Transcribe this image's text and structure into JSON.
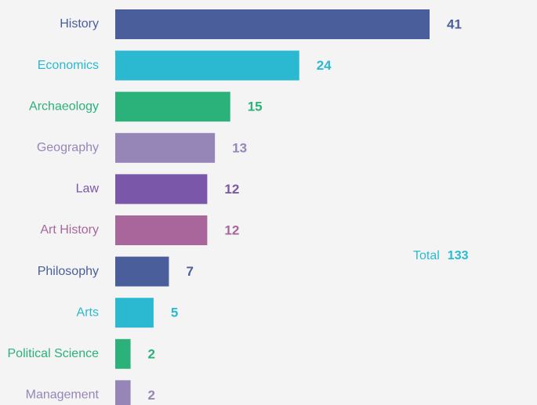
{
  "chart_data": {
    "type": "bar",
    "orientation": "horizontal",
    "categories": [
      "History",
      "Economics",
      "Archaeology",
      "Geography",
      "Law",
      "Art History",
      "Philosophy",
      "Arts",
      "Political Science",
      "Management"
    ],
    "values": [
      41,
      24,
      15,
      13,
      12,
      12,
      7,
      5,
      2,
      2
    ],
    "colors": [
      "#4a5e9b",
      "#2bb9d1",
      "#2bb17a",
      "#9686b8",
      "#7a57a8",
      "#a9669b",
      "#4a5e9b",
      "#2bb9d1",
      "#2bb17a",
      "#9686b8"
    ],
    "total": {
      "label": "Total",
      "value": 133,
      "color": "#2bbad3"
    }
  }
}
